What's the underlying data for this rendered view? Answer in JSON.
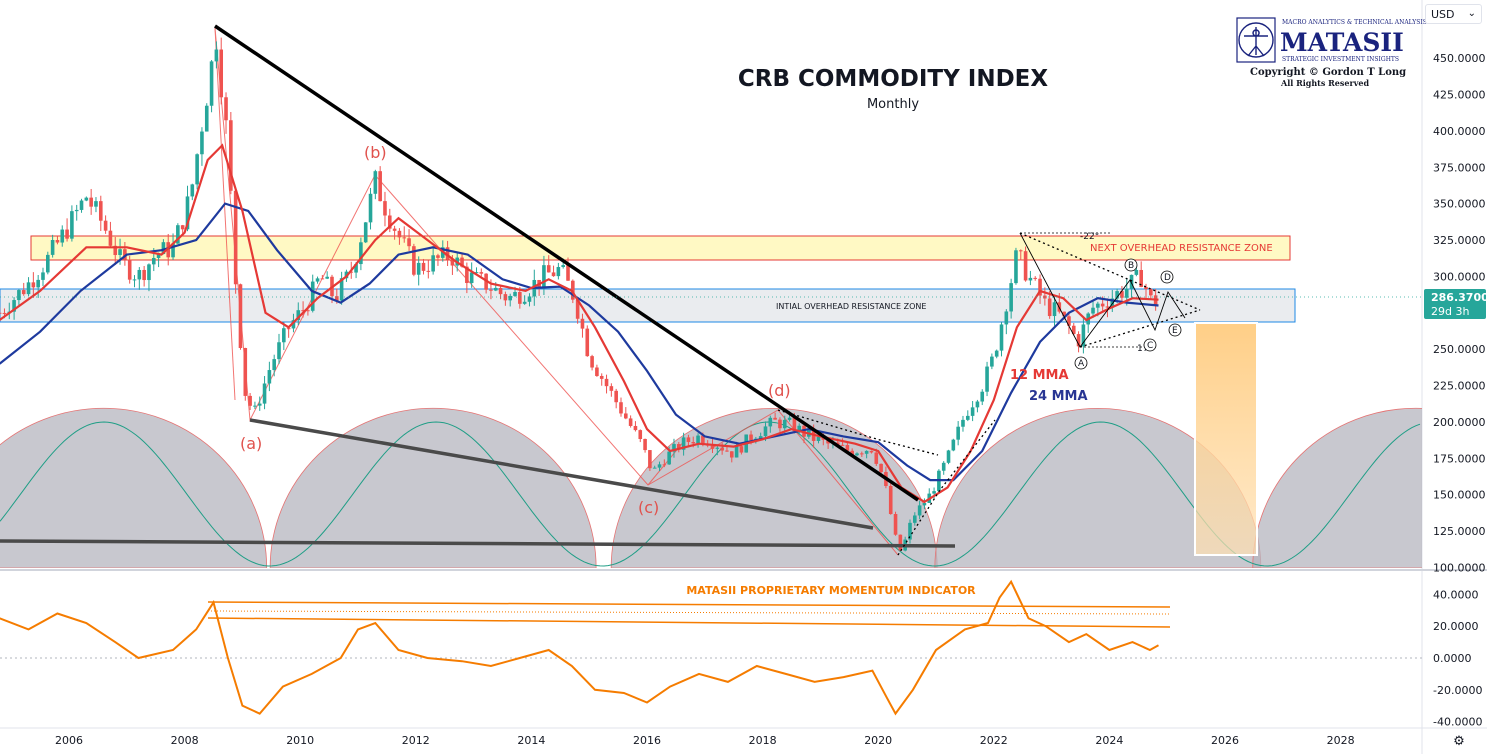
{
  "header": {
    "title": "CRB COMMODITY INDEX",
    "subtitle": "Monthly",
    "currency_selector": "USD"
  },
  "logo": {
    "name": "MATASII",
    "tagline_top": "MACRO ANALYTICS & TECHNICAL ANALYSIS",
    "tagline_bottom": "STRATEGIC INVESTMENT INSIGHTS",
    "copyright": "Copyright © Gordon T Long",
    "rights": "All Rights Reserved"
  },
  "price_axis": {
    "ticks": [
      "450.0000",
      "425.0000",
      "400.0000",
      "375.0000",
      "350.0000",
      "325.0000",
      "300.0000",
      "275.0000",
      "250.0000",
      "225.0000",
      "200.0000",
      "175.0000",
      "150.0000",
      "125.0000",
      "100.0000"
    ],
    "last_price": "286.3700",
    "countdown": "29d 3h",
    "last_price_color": "#26a69a"
  },
  "indicator_axis": {
    "ticks": [
      "40.0000",
      "20.0000",
      "0.0000",
      "-20.0000",
      "-40.0000"
    ]
  },
  "time_axis": {
    "ticks": [
      "2006",
      "2008",
      "2010",
      "2012",
      "2014",
      "2016",
      "2018",
      "2020",
      "2022",
      "2024",
      "2026",
      "2028"
    ]
  },
  "annotations": {
    "next_zone": "NEXT OVERHEAD RESISTANCE ZONE",
    "initial_zone": "INTIAL OVERHEAD RESISTANCE ZONE",
    "wave_a": "(a)",
    "wave_b": "(b)",
    "wave_c": "(c)",
    "wave_d": "(d)",
    "ma12": "12 MMA",
    "ma24": "24 MMA",
    "indicator_name": "MATASII PROPRIETARY MOMENTUM INDICATOR",
    "angle_top": "-22°",
    "angle_bottom": "17°",
    "tri_A": "A",
    "tri_B": "B",
    "tri_C": "C",
    "tri_D": "D",
    "tri_E": "E"
  },
  "chart_data": {
    "type": "line",
    "title": "CRB COMMODITY INDEX",
    "subtitle": "Monthly",
    "x_range": [
      2004.8,
      2029.3
    ],
    "ylim": [
      100,
      470
    ],
    "indicator_ylim": [
      -40,
      50
    ],
    "colors": {
      "up": "#26a69a",
      "down": "#ef5350",
      "ma12": "#e53935",
      "ma24": "#1e3a9e",
      "momentum": "#f57c00",
      "trendline": "#000000",
      "cycle_fill": "#b5b5bf",
      "cycle_wave": "#1f9e86"
    },
    "price_path": [
      [
        2004.8,
        275
      ],
      [
        2005.3,
        295
      ],
      [
        2005.6,
        310
      ],
      [
        2006.0,
        335
      ],
      [
        2006.3,
        355
      ],
      [
        2006.6,
        335
      ],
      [
        2006.9,
        310
      ],
      [
        2007.2,
        300
      ],
      [
        2007.5,
        315
      ],
      [
        2007.8,
        320
      ],
      [
        2008.1,
        355
      ],
      [
        2008.3,
        405
      ],
      [
        2008.55,
        465
      ],
      [
        2008.75,
        390
      ],
      [
        2008.9,
        285
      ],
      [
        2009.05,
        220
      ],
      [
        2009.2,
        205
      ],
      [
        2009.5,
        240
      ],
      [
        2009.8,
        265
      ],
      [
        2010.1,
        280
      ],
      [
        2010.35,
        300
      ],
      [
        2010.6,
        285
      ],
      [
        2010.9,
        305
      ],
      [
        2011.1,
        335
      ],
      [
        2011.3,
        365
      ],
      [
        2011.5,
        345
      ],
      [
        2011.8,
        320
      ],
      [
        2012.0,
        305
      ],
      [
        2012.3,
        310
      ],
      [
        2012.6,
        315
      ],
      [
        2012.9,
        300
      ],
      [
        2013.2,
        295
      ],
      [
        2013.6,
        285
      ],
      [
        2013.9,
        290
      ],
      [
        2014.2,
        300
      ],
      [
        2014.5,
        305
      ],
      [
        2014.75,
        285
      ],
      [
        2015.0,
        245
      ],
      [
        2015.3,
        225
      ],
      [
        2015.6,
        205
      ],
      [
        2015.9,
        185
      ],
      [
        2016.1,
        165
      ],
      [
        2016.3,
        175
      ],
      [
        2016.6,
        185
      ],
      [
        2016.9,
        190
      ],
      [
        2017.2,
        185
      ],
      [
        2017.5,
        178
      ],
      [
        2017.8,
        190
      ],
      [
        2018.2,
        200
      ],
      [
        2018.5,
        198
      ],
      [
        2018.8,
        190
      ],
      [
        2019.1,
        185
      ],
      [
        2019.5,
        180
      ],
      [
        2019.9,
        182
      ],
      [
        2020.1,
        160
      ],
      [
        2020.3,
        120
      ],
      [
        2020.4,
        110
      ],
      [
        2020.6,
        135
      ],
      [
        2020.9,
        150
      ],
      [
        2021.2,
        175
      ],
      [
        2021.5,
        205
      ],
      [
        2021.8,
        225
      ],
      [
        2022.0,
        245
      ],
      [
        2022.2,
        280
      ],
      [
        2022.4,
        315
      ],
      [
        2022.6,
        300
      ],
      [
        2022.9,
        280
      ],
      [
        2023.1,
        275
      ],
      [
        2023.3,
        265
      ],
      [
        2023.45,
        255
      ],
      [
        2023.7,
        278
      ],
      [
        2024.0,
        285
      ],
      [
        2024.3,
        292
      ],
      [
        2024.55,
        300
      ],
      [
        2024.75,
        280
      ],
      [
        2024.85,
        286.37
      ]
    ],
    "ma12_path": [
      [
        2004.8,
        270
      ],
      [
        2005.5,
        290
      ],
      [
        2006.3,
        320
      ],
      [
        2007.0,
        320
      ],
      [
        2007.6,
        315
      ],
      [
        2008.0,
        330
      ],
      [
        2008.4,
        380
      ],
      [
        2008.65,
        390
      ],
      [
        2009.0,
        345
      ],
      [
        2009.4,
        275
      ],
      [
        2009.8,
        265
      ],
      [
        2010.3,
        285
      ],
      [
        2010.8,
        300
      ],
      [
        2011.3,
        325
      ],
      [
        2011.7,
        340
      ],
      [
        2012.2,
        325
      ],
      [
        2012.7,
        310
      ],
      [
        2013.3,
        295
      ],
      [
        2013.9,
        290
      ],
      [
        2014.3,
        298
      ],
      [
        2014.7,
        290
      ],
      [
        2015.1,
        265
      ],
      [
        2015.6,
        228
      ],
      [
        2016.0,
        195
      ],
      [
        2016.4,
        180
      ],
      [
        2016.9,
        185
      ],
      [
        2017.5,
        183
      ],
      [
        2018.0,
        188
      ],
      [
        2018.5,
        195
      ],
      [
        2019.0,
        190
      ],
      [
        2019.6,
        185
      ],
      [
        2020.0,
        180
      ],
      [
        2020.4,
        155
      ],
      [
        2020.8,
        145
      ],
      [
        2021.2,
        155
      ],
      [
        2021.6,
        180
      ],
      [
        2022.0,
        215
      ],
      [
        2022.4,
        265
      ],
      [
        2022.8,
        290
      ],
      [
        2023.2,
        285
      ],
      [
        2023.6,
        270
      ],
      [
        2024.0,
        278
      ],
      [
        2024.4,
        285
      ],
      [
        2024.85,
        284
      ]
    ],
    "ma24_path": [
      [
        2004.8,
        240
      ],
      [
        2005.5,
        262
      ],
      [
        2006.2,
        290
      ],
      [
        2007.0,
        315
      ],
      [
        2007.6,
        318
      ],
      [
        2008.2,
        325
      ],
      [
        2008.7,
        350
      ],
      [
        2009.1,
        345
      ],
      [
        2009.6,
        318
      ],
      [
        2010.2,
        290
      ],
      [
        2010.7,
        282
      ],
      [
        2011.2,
        295
      ],
      [
        2011.7,
        315
      ],
      [
        2012.3,
        320
      ],
      [
        2012.9,
        315
      ],
      [
        2013.5,
        298
      ],
      [
        2014.0,
        292
      ],
      [
        2014.5,
        293
      ],
      [
        2015.0,
        280
      ],
      [
        2015.5,
        262
      ],
      [
        2016.0,
        235
      ],
      [
        2016.5,
        205
      ],
      [
        2017.0,
        190
      ],
      [
        2017.6,
        185
      ],
      [
        2018.2,
        190
      ],
      [
        2018.8,
        195
      ],
      [
        2019.4,
        190
      ],
      [
        2020.0,
        186
      ],
      [
        2020.5,
        170
      ],
      [
        2020.9,
        160
      ],
      [
        2021.3,
        160
      ],
      [
        2021.8,
        180
      ],
      [
        2022.3,
        220
      ],
      [
        2022.8,
        255
      ],
      [
        2023.3,
        275
      ],
      [
        2023.8,
        285
      ],
      [
        2024.3,
        282
      ],
      [
        2024.85,
        280
      ]
    ],
    "momentum_path": [
      [
        2004.8,
        25
      ],
      [
        2005.3,
        18
      ],
      [
        2005.8,
        28
      ],
      [
        2006.3,
        22
      ],
      [
        2006.8,
        10
      ],
      [
        2007.2,
        0
      ],
      [
        2007.8,
        5
      ],
      [
        2008.2,
        18
      ],
      [
        2008.5,
        35
      ],
      [
        2008.75,
        0
      ],
      [
        2009.0,
        -30
      ],
      [
        2009.3,
        -35
      ],
      [
        2009.7,
        -18
      ],
      [
        2010.2,
        -10
      ],
      [
        2010.7,
        0
      ],
      [
        2011.0,
        18
      ],
      [
        2011.3,
        22
      ],
      [
        2011.7,
        5
      ],
      [
        2012.2,
        0
      ],
      [
        2012.8,
        -2
      ],
      [
        2013.3,
        -5
      ],
      [
        2013.8,
        0
      ],
      [
        2014.3,
        5
      ],
      [
        2014.7,
        -5
      ],
      [
        2015.1,
        -20
      ],
      [
        2015.6,
        -22
      ],
      [
        2016.0,
        -28
      ],
      [
        2016.4,
        -18
      ],
      [
        2016.9,
        -10
      ],
      [
        2017.4,
        -15
      ],
      [
        2017.9,
        -5
      ],
      [
        2018.4,
        -10
      ],
      [
        2018.9,
        -15
      ],
      [
        2019.4,
        -12
      ],
      [
        2019.9,
        -8
      ],
      [
        2020.15,
        -25
      ],
      [
        2020.3,
        -35
      ],
      [
        2020.6,
        -20
      ],
      [
        2021.0,
        5
      ],
      [
        2021.5,
        18
      ],
      [
        2021.9,
        22
      ],
      [
        2022.1,
        38
      ],
      [
        2022.3,
        48
      ],
      [
        2022.6,
        25
      ],
      [
        2022.9,
        20
      ],
      [
        2023.3,
        10
      ],
      [
        2023.6,
        15
      ],
      [
        2024.0,
        5
      ],
      [
        2024.4,
        10
      ],
      [
        2024.7,
        5
      ],
      [
        2024.85,
        8
      ]
    ]
  }
}
